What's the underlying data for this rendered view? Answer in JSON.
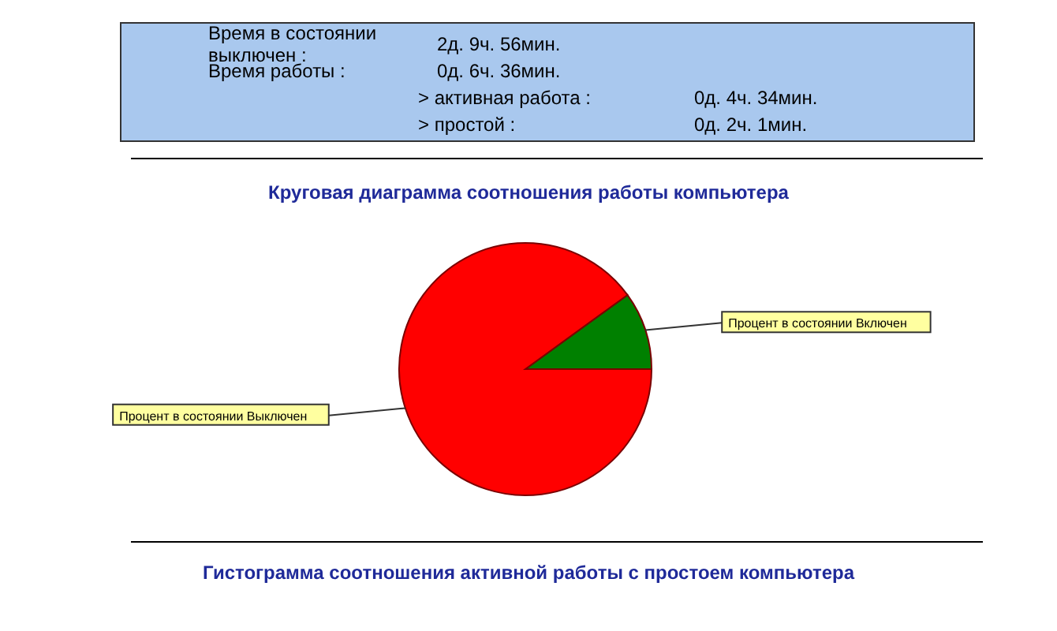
{
  "chart_data": {
    "type": "pie",
    "title": "Круговая диаграмма соотношения работы компьютера",
    "categories": [
      "Процент в состоянии Включен",
      "Процент в состоянии Выключен"
    ],
    "values": [
      10,
      90
    ],
    "colors": [
      "#008000",
      "#ff0000"
    ],
    "annotations": [
      "Время в состоянии выключен :",
      "2д. 9ч. 56мин.",
      "Время работы :",
      "0д. 6ч. 36мин.",
      "> активная работа :",
      "0д. 4ч. 34мин.",
      "> простой :",
      "0д. 2ч. 1мин.",
      "Гистограмма соотношения активной работы с простоем компьютера"
    ]
  }
}
